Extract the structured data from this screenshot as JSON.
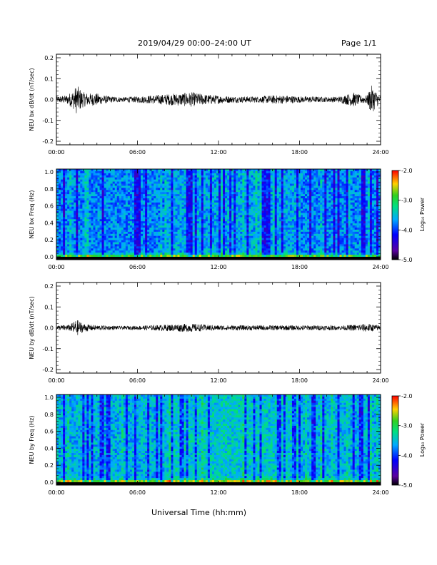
{
  "header": {
    "title": "2019/04/29  00:00–24:00 UT",
    "page": "Page 1/1"
  },
  "footer": {
    "xlabel": "Universal Time (hh:mm)"
  },
  "colorbar": {
    "label": "Log₁₀ Power",
    "ticks": [
      "-2.0",
      "-3.0",
      "-4.0",
      "-5.0"
    ],
    "range": [
      -5.0,
      -2.0
    ]
  },
  "colors": {
    "trace": "#000000",
    "spectrogram_background": "#2f6fe8"
  },
  "chart_data": [
    {
      "type": "line",
      "ylabel": "NEU bx dB/dt (nT/sec)",
      "xlim": [
        "00:00",
        "24:00"
      ],
      "ylim": [
        -0.2,
        0.2
      ],
      "x_ticks": [
        "00:00",
        "06:00",
        "12:00",
        "18:00",
        "24:00"
      ],
      "y_ticks": [
        "0.2",
        "0.1",
        "0.0",
        "-0.1",
        "-0.2"
      ],
      "envelope": {
        "x_hours": [
          0,
          0.75,
          1.25,
          1.5,
          2.0,
          2.5,
          3.0,
          3.5,
          4.0,
          5.0,
          6.0,
          7.0,
          8.0,
          9.0,
          10.0,
          11.0,
          12.0,
          13.0,
          14.0,
          15.0,
          16.0,
          17.0,
          18.0,
          19.0,
          20.0,
          21.0,
          21.5,
          22.0,
          22.5,
          23.0,
          23.3,
          24.0
        ],
        "amplitude": [
          0.015,
          0.02,
          0.045,
          0.07,
          0.035,
          0.03,
          0.03,
          0.02,
          0.015,
          0.012,
          0.015,
          0.02,
          0.025,
          0.03,
          0.035,
          0.025,
          0.02,
          0.015,
          0.015,
          0.015,
          0.02,
          0.02,
          0.015,
          0.015,
          0.012,
          0.015,
          0.025,
          0.035,
          0.02,
          0.02,
          0.07,
          0.015
        ]
      }
    },
    {
      "type": "heatmap",
      "ylabel": "NEU bx Freq (Hz)",
      "xlim": [
        "00:00",
        "24:00"
      ],
      "ylim": [
        0.0,
        1.0
      ],
      "x_ticks": [
        "00:00",
        "06:00",
        "12:00",
        "18:00",
        "24:00"
      ],
      "y_ticks": [
        "1.0",
        "0.8",
        "0.6",
        "0.4",
        "0.2",
        "0.0"
      ],
      "zlabel": "Log₁₀ Power",
      "zlim": [
        -5.0,
        -2.0
      ]
    },
    {
      "type": "line",
      "ylabel": "NEU by dB/dt (nT/sec)",
      "xlim": [
        "00:00",
        "24:00"
      ],
      "ylim": [
        -0.2,
        0.2
      ],
      "x_ticks": [
        "00:00",
        "06:00",
        "12:00",
        "18:00",
        "24:00"
      ],
      "y_ticks": [
        "0.2",
        "0.1",
        "0.0",
        "-0.1",
        "-0.2"
      ],
      "envelope": {
        "x_hours": [
          0,
          1.0,
          1.5,
          2.0,
          2.5,
          3.0,
          4.0,
          5.0,
          6.0,
          7.0,
          8.0,
          9.0,
          10.0,
          11.0,
          12.0,
          14.0,
          16.0,
          18.0,
          20.0,
          21.0,
          22.0,
          23.0,
          24.0
        ],
        "amplitude": [
          0.012,
          0.015,
          0.04,
          0.02,
          0.015,
          0.012,
          0.01,
          0.008,
          0.01,
          0.012,
          0.015,
          0.018,
          0.02,
          0.015,
          0.012,
          0.012,
          0.012,
          0.012,
          0.012,
          0.01,
          0.015,
          0.02,
          0.012
        ]
      }
    },
    {
      "type": "heatmap",
      "ylabel": "NEU by Freq (Hz)",
      "xlim": [
        "00:00",
        "24:00"
      ],
      "ylim": [
        0.0,
        1.0
      ],
      "x_ticks": [
        "00:00",
        "06:00",
        "12:00",
        "18:00",
        "24:00"
      ],
      "y_ticks": [
        "1.0",
        "0.8",
        "0.6",
        "0.4",
        "0.2",
        "0.0"
      ],
      "zlabel": "Log₁₀ Power",
      "zlim": [
        -5.0,
        -2.0
      ]
    }
  ]
}
